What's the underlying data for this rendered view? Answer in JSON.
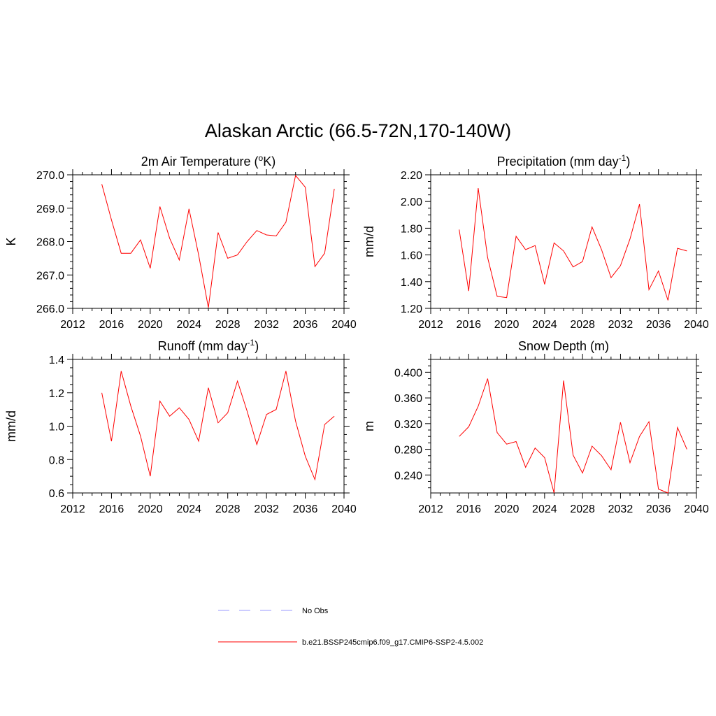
{
  "title": "Alaskan Arctic (66.5-72N,170-140W)",
  "colors": {
    "model": "#ff0000",
    "obs": "#9999ff"
  },
  "legend": [
    {
      "label": "No Obs",
      "style": "dashed",
      "color": "#9999ff"
    },
    {
      "label": "b.e21.BSSP245cmip6.f09_g17.CMIP6-SSP2-4.5.002",
      "style": "solid",
      "color": "#ff0000"
    }
  ],
  "chart_data": [
    {
      "type": "line",
      "title": "2m Air Temperature (°K)",
      "title_base": "2m Air Temperature (",
      "title_sup": "o",
      "title_end": "K)",
      "ylabel": "K",
      "xlim": [
        2012,
        2040
      ],
      "ylim": [
        266.0,
        270.0
      ],
      "xticks": [
        2012,
        2016,
        2020,
        2024,
        2028,
        2032,
        2036,
        2040
      ],
      "yticks": [
        "266.0",
        "267.0",
        "268.0",
        "269.0",
        "270.0"
      ],
      "yminor": 0.2,
      "x": [
        2015,
        2016,
        2017,
        2018,
        2019,
        2020,
        2021,
        2022,
        2023,
        2024,
        2025,
        2026,
        2027,
        2028,
        2029,
        2030,
        2031,
        2032,
        2033,
        2034,
        2035,
        2036,
        2037,
        2038,
        2039
      ],
      "values": [
        269.72,
        268.65,
        267.65,
        267.65,
        268.05,
        267.2,
        269.05,
        268.1,
        267.45,
        268.98,
        267.6,
        266.02,
        268.27,
        267.5,
        267.6,
        268.0,
        268.33,
        268.2,
        268.17,
        268.58,
        269.98,
        269.63,
        267.25,
        267.65,
        269.58
      ]
    },
    {
      "type": "line",
      "title": "Precipitation (mm day-1)",
      "title_base": "Precipitation (mm day",
      "title_sup": "-1",
      "title_end": ")",
      "ylabel": "mm/d",
      "xlim": [
        2012,
        2040
      ],
      "ylim": [
        1.2,
        2.2
      ],
      "xticks": [
        2012,
        2016,
        2020,
        2024,
        2028,
        2032,
        2036,
        2040
      ],
      "yticks": [
        "1.20",
        "1.40",
        "1.60",
        "1.80",
        "2.00",
        "2.20"
      ],
      "yminor": 0.05,
      "x": [
        2015,
        2016,
        2017,
        2018,
        2019,
        2020,
        2021,
        2022,
        2023,
        2024,
        2025,
        2026,
        2027,
        2028,
        2029,
        2030,
        2031,
        2032,
        2033,
        2034,
        2035,
        2036,
        2037,
        2038,
        2039
      ],
      "values": [
        1.79,
        1.33,
        2.1,
        1.58,
        1.29,
        1.28,
        1.74,
        1.64,
        1.67,
        1.38,
        1.69,
        1.63,
        1.51,
        1.55,
        1.81,
        1.64,
        1.43,
        1.52,
        1.72,
        1.98,
        1.34,
        1.48,
        1.26,
        1.65,
        1.63
      ]
    },
    {
      "type": "line",
      "title": "Runoff (mm day-1)",
      "title_base": "Runoff (mm day",
      "title_sup": "-1",
      "title_end": ")",
      "ylabel": "mm/d",
      "xlim": [
        2012,
        2040
      ],
      "ylim": [
        0.6,
        1.4
      ],
      "xticks": [
        2012,
        2016,
        2020,
        2024,
        2028,
        2032,
        2036,
        2040
      ],
      "yticks": [
        "0.6",
        "0.8",
        "1.0",
        "1.2",
        "1.4"
      ],
      "yminor": 0.05,
      "x": [
        2015,
        2016,
        2017,
        2018,
        2019,
        2020,
        2021,
        2022,
        2023,
        2024,
        2025,
        2026,
        2027,
        2028,
        2029,
        2030,
        2031,
        2032,
        2033,
        2034,
        2035,
        2036,
        2037,
        2038,
        2039
      ],
      "values": [
        1.2,
        0.91,
        1.33,
        1.12,
        0.94,
        0.7,
        1.15,
        1.06,
        1.11,
        1.04,
        0.91,
        1.23,
        1.02,
        1.08,
        1.27,
        1.09,
        0.89,
        1.07,
        1.1,
        1.33,
        1.03,
        0.82,
        0.68,
        1.01,
        1.06
      ]
    },
    {
      "type": "line",
      "title": "Snow Depth (m)",
      "title_base": "Snow Depth (m)",
      "title_sup": "",
      "title_end": "",
      "ylabel": "m",
      "xlim": [
        2012,
        2040
      ],
      "ylim": [
        0.212,
        0.42
      ],
      "xticks": [
        2012,
        2016,
        2020,
        2024,
        2028,
        2032,
        2036,
        2040
      ],
      "yticks": [
        "0.240",
        "0.280",
        "0.320",
        "0.360",
        "0.400"
      ],
      "ytick_values": [
        0.24,
        0.28,
        0.32,
        0.36,
        0.4
      ],
      "yminor": 0.01,
      "x": [
        2015,
        2016,
        2017,
        2018,
        2019,
        2020,
        2021,
        2022,
        2023,
        2024,
        2025,
        2026,
        2027,
        2028,
        2029,
        2030,
        2031,
        2032,
        2033,
        2034,
        2035,
        2036,
        2037,
        2038,
        2039
      ],
      "values": [
        0.3,
        0.315,
        0.347,
        0.39,
        0.306,
        0.288,
        0.292,
        0.252,
        0.282,
        0.267,
        0.212,
        0.387,
        0.271,
        0.243,
        0.285,
        0.27,
        0.248,
        0.322,
        0.259,
        0.3,
        0.323,
        0.218,
        0.212,
        0.314,
        0.28
      ]
    }
  ]
}
